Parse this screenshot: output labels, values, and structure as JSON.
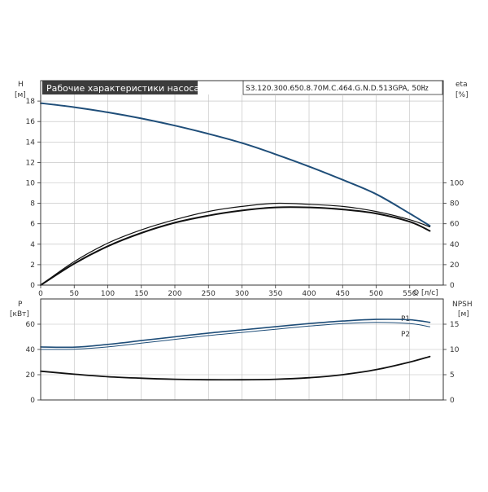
{
  "header": {
    "title": "Рабочие характеристики насоса",
    "model": "S3.120.300.650.8.70M.C.464.G.N.D.513GPA, 50㎐"
  },
  "colors": {
    "head_curve": "#1f4e79",
    "eta_curve": "#111111",
    "power_curve": "#1f4e79",
    "npsh_curve": "#111111",
    "grid": "#bdbdbd",
    "title_box": "#3c3c3c"
  },
  "chart_data": [
    {
      "type": "line",
      "name": "top",
      "left_axis": {
        "label": "H",
        "unit": "[м]",
        "ylim": [
          0,
          20
        ],
        "ticks": [
          0,
          2,
          4,
          6,
          8,
          10,
          12,
          14,
          16,
          18
        ]
      },
      "right_axis": {
        "label": "eta",
        "unit": "[%]",
        "ylim": [
          0,
          200
        ],
        "ticks": [
          0,
          20,
          40,
          60,
          80,
          100
        ]
      },
      "x_axis": {
        "label": "Q [л/с]",
        "xlim": [
          0,
          600
        ],
        "ticks": [
          0,
          50,
          100,
          150,
          200,
          250,
          300,
          350,
          400,
          450,
          500,
          550
        ]
      },
      "grid": true,
      "series": [
        {
          "axis": "left",
          "color_key": "head_curve",
          "width": 2,
          "x": [
            0,
            50,
            100,
            150,
            200,
            250,
            300,
            350,
            400,
            450,
            500,
            550,
            580
          ],
          "y": [
            17.8,
            17.4,
            16.9,
            16.3,
            15.6,
            14.8,
            13.9,
            12.8,
            11.6,
            10.3,
            8.9,
            7.0,
            5.8
          ]
        },
        {
          "axis": "right",
          "color_key": "eta_curve",
          "width": 1.2,
          "x": [
            0,
            50,
            100,
            150,
            200,
            250,
            300,
            350,
            400,
            450,
            500,
            550,
            580
          ],
          "y": [
            0,
            23,
            41,
            54,
            64,
            72,
            77,
            80,
            79,
            77,
            72,
            64,
            57
          ]
        },
        {
          "axis": "right",
          "color_key": "eta_curve",
          "width": 2,
          "x": [
            0,
            50,
            100,
            150,
            200,
            250,
            300,
            350,
            400,
            450,
            500,
            550,
            580
          ],
          "y": [
            0,
            21,
            38,
            51,
            61,
            68,
            73,
            76,
            76,
            74,
            70,
            62,
            53
          ]
        }
      ]
    },
    {
      "type": "line",
      "name": "bottom",
      "left_axis": {
        "label": "P",
        "unit": "[кВт]",
        "ylim": [
          0,
          80
        ],
        "ticks": [
          0,
          20,
          40,
          60
        ]
      },
      "right_axis": {
        "label": "NPSH",
        "unit": "[м]",
        "ylim": [
          0,
          20
        ],
        "ticks": [
          0,
          5,
          10,
          15
        ]
      },
      "x_axis": {
        "xlim": [
          0,
          600
        ]
      },
      "grid": true,
      "series": [
        {
          "axis": "left",
          "name": "P1",
          "color_key": "power_curve",
          "width": 1.6,
          "x": [
            0,
            50,
            100,
            150,
            200,
            250,
            300,
            350,
            400,
            450,
            500,
            550,
            580
          ],
          "y": [
            42,
            41.8,
            44,
            47,
            50,
            53,
            55.5,
            58,
            60.5,
            62.5,
            63.8,
            63.5,
            61.5
          ]
        },
        {
          "axis": "left",
          "name": "P2",
          "color_key": "power_curve",
          "width": 1,
          "x": [
            0,
            50,
            100,
            150,
            200,
            250,
            300,
            350,
            400,
            450,
            500,
            550,
            580
          ],
          "y": [
            40,
            40.2,
            42,
            45,
            48,
            51,
            53.5,
            56,
            58.5,
            60.5,
            61.5,
            60.5,
            58
          ]
        },
        {
          "axis": "right",
          "color_key": "npsh_curve",
          "width": 1.8,
          "x": [
            0,
            50,
            100,
            150,
            200,
            250,
            300,
            350,
            400,
            450,
            500,
            550,
            580
          ],
          "y": [
            5.7,
            5.1,
            4.6,
            4.3,
            4.1,
            4.0,
            4.0,
            4.1,
            4.4,
            5.0,
            6.0,
            7.5,
            8.6
          ]
        }
      ]
    }
  ]
}
